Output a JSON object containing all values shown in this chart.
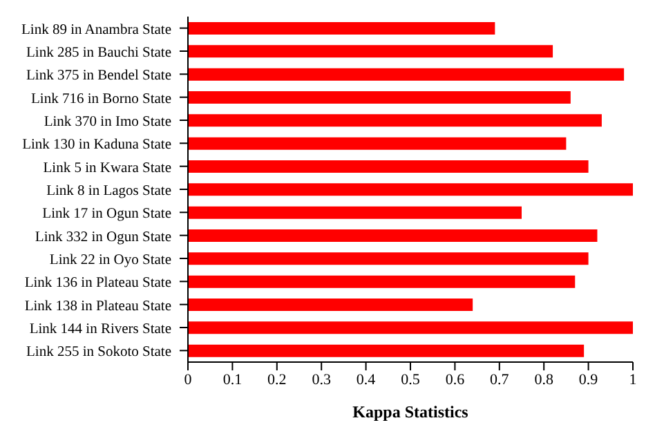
{
  "chart_data": {
    "type": "bar",
    "orientation": "horizontal",
    "xlabel": "Kappa Statistics",
    "categories": [
      "Link 89 in Anambra State",
      "Link 285 in Bauchi State",
      "Link 375 in Bendel State",
      "Link 716 in Borno State",
      "Link 370 in Imo State",
      "Link 130 in Kaduna State",
      "Link 5 in Kwara State",
      "Link 8 in Lagos State",
      "Link 17 in Ogun State",
      "Link 332 in Ogun State",
      "Link 22 in Oyo State",
      "Link 136 in Plateau State",
      "Link 138 in Plateau State",
      "Link 144 in Rivers State",
      "Link 255 in Sokoto State"
    ],
    "values": [
      0.69,
      0.82,
      0.98,
      0.86,
      0.93,
      0.85,
      0.9,
      1.0,
      0.75,
      0.92,
      0.9,
      0.87,
      0.64,
      1.0,
      0.89
    ],
    "color": "#ff0000",
    "xlim": [
      0,
      1
    ],
    "xticks": [
      0,
      0.1,
      0.2,
      0.3,
      0.4,
      0.5,
      0.6,
      0.7,
      0.8,
      0.9,
      1
    ],
    "grid": false,
    "legend": false
  }
}
